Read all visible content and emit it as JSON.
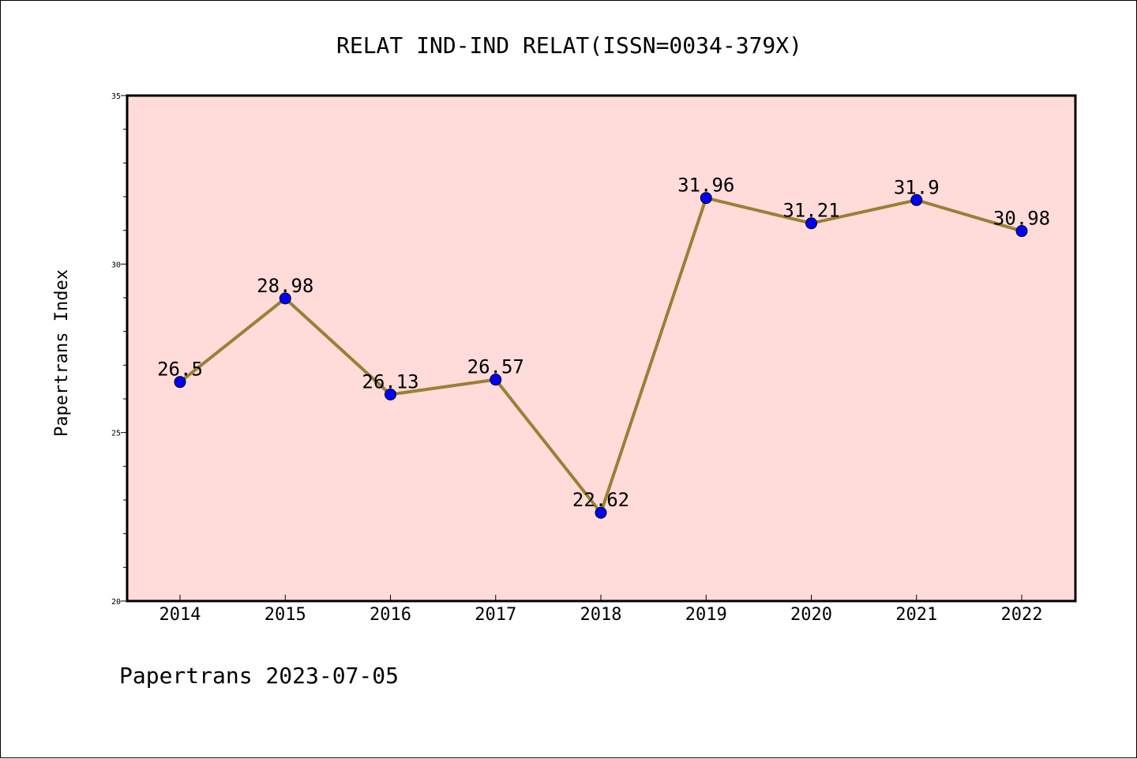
{
  "chart_data": {
    "type": "line",
    "title": "RELAT IND-IND RELAT(ISSN=0034-379X)",
    "ylabel": "Papertrans Index",
    "xlabel": "",
    "categories": [
      "2014",
      "2015",
      "2016",
      "2017",
      "2018",
      "2019",
      "2020",
      "2021",
      "2022"
    ],
    "series": [
      {
        "values": [
          26.5,
          28.98,
          26.13,
          26.57,
          22.62,
          31.96,
          31.21,
          31.9,
          30.98
        ],
        "labels": [
          "26.5",
          "28.98",
          "26.13",
          "26.57",
          "22.62",
          "31.96",
          "31.21",
          "31.9",
          "30.98"
        ]
      }
    ],
    "ylim": [
      20,
      35
    ],
    "yticks": [
      "20",
      "25",
      "30",
      "35"
    ],
    "grid": false,
    "colors": {
      "plot_background": "#FFDCDA",
      "line": "#9A8035",
      "marker": "#0000FF"
    }
  },
  "footer": "Papertrans 2023-07-05"
}
